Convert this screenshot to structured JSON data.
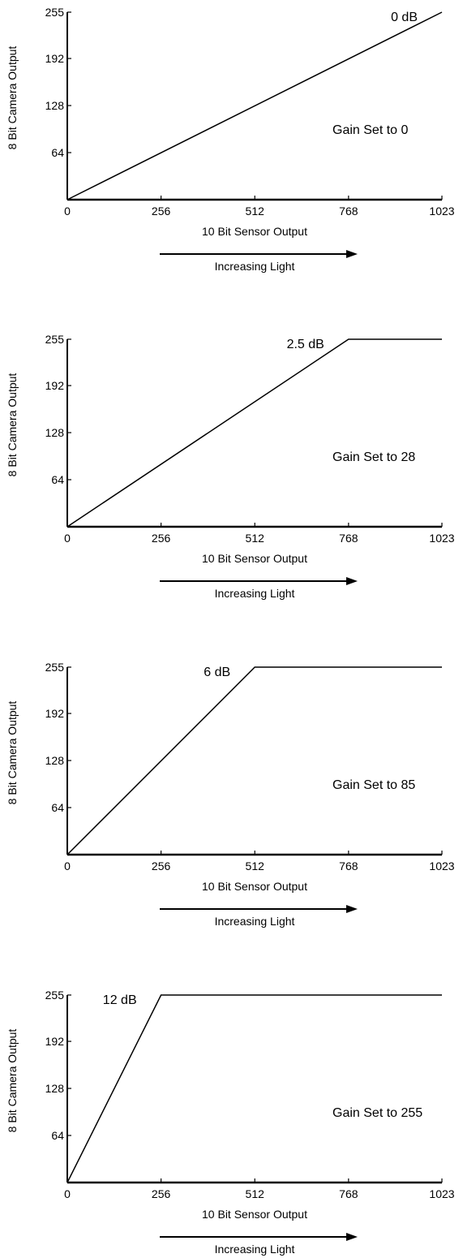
{
  "chart_data": [
    {
      "type": "line",
      "xlabel": "10 Bit Sensor Output",
      "ylabel": "8 Bit Camera Output",
      "arrow_label": "Increasing Light",
      "xlim": [
        0,
        1023
      ],
      "ylim": [
        0,
        255
      ],
      "x_ticks": [
        0,
        256,
        512,
        768,
        1023
      ],
      "y_ticks": [
        64,
        128,
        192,
        255
      ],
      "db_label": "0 dB",
      "gain_label": "Gain Set to 0",
      "series": [
        {
          "x": [
            0,
            1023
          ],
          "y": [
            0,
            255
          ]
        }
      ]
    },
    {
      "type": "line",
      "xlabel": "10 Bit Sensor Output",
      "ylabel": "8 Bit Camera Output",
      "arrow_label": "Increasing Light",
      "xlim": [
        0,
        1023
      ],
      "ylim": [
        0,
        255
      ],
      "x_ticks": [
        0,
        256,
        512,
        768,
        1023
      ],
      "y_ticks": [
        64,
        128,
        192,
        255
      ],
      "db_label": "2.5 dB",
      "gain_label": "Gain Set to 28",
      "series": [
        {
          "x": [
            0,
            768,
            1023
          ],
          "y": [
            0,
            255,
            255
          ]
        }
      ]
    },
    {
      "type": "line",
      "xlabel": "10 Bit Sensor Output",
      "ylabel": "8 Bit Camera Output",
      "arrow_label": "Increasing Light",
      "xlim": [
        0,
        1023
      ],
      "ylim": [
        0,
        255
      ],
      "x_ticks": [
        0,
        256,
        512,
        768,
        1023
      ],
      "y_ticks": [
        64,
        128,
        192,
        255
      ],
      "db_label": "6 dB",
      "gain_label": "Gain Set to 85",
      "series": [
        {
          "x": [
            0,
            512,
            1023
          ],
          "y": [
            0,
            255,
            255
          ]
        }
      ]
    },
    {
      "type": "line",
      "xlabel": "10 Bit Sensor Output",
      "ylabel": "8 Bit Camera Output",
      "arrow_label": "Increasing Light",
      "xlim": [
        0,
        1023
      ],
      "ylim": [
        0,
        255
      ],
      "x_ticks": [
        0,
        256,
        512,
        768,
        1023
      ],
      "y_ticks": [
        64,
        128,
        192,
        255
      ],
      "db_label": "12 dB",
      "gain_label": "Gain Set to 255",
      "series": [
        {
          "x": [
            0,
            256,
            1023
          ],
          "y": [
            0,
            255,
            255
          ]
        }
      ]
    }
  ]
}
